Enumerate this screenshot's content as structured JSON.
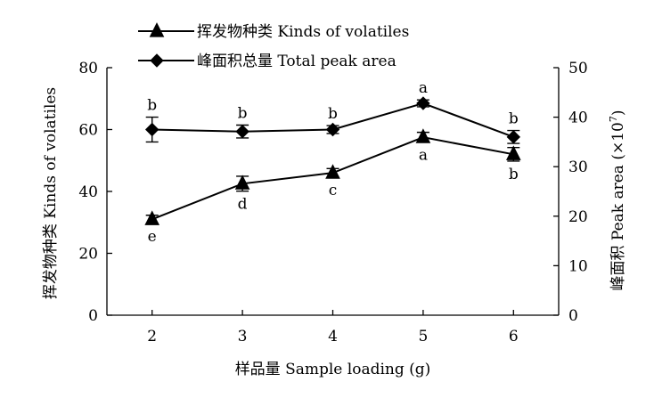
{
  "chart_data": {
    "type": "line",
    "xlabel": "样品量 Sample loading (g)",
    "ylabel_left": "挥发物种类 Kinds of volatiles",
    "ylabel_right": "峰面积 Peak area (×10^7)",
    "ylabel_right_main": "峰面积 Peak area (×10",
    "ylabel_right_exp": "7",
    "ylabel_right_close": ")",
    "x": [
      2,
      3,
      4,
      5,
      6
    ],
    "x_tick_labels": [
      "2",
      "3",
      "4",
      "5",
      "6"
    ],
    "xlim": [
      1.5,
      6.5
    ],
    "ylim_left": [
      0,
      80
    ],
    "yticks_left": [
      0,
      20,
      40,
      60,
      80
    ],
    "ytick_labels_left": [
      "0",
      "20",
      "40",
      "60",
      "80"
    ],
    "ylim_right": [
      0,
      50
    ],
    "yticks_right": [
      0,
      10,
      20,
      30,
      40,
      50
    ],
    "ytick_labels_right": [
      "0",
      "10",
      "20",
      "30",
      "40",
      "50"
    ],
    "grid": false,
    "legend_position": "top",
    "series": [
      {
        "name": "挥发物种类 Kinds of volatiles",
        "axis": "left",
        "marker": "triangle",
        "values": [
          31,
          42.5,
          46,
          57.5,
          52
        ],
        "errors": [
          1.3,
          2.4,
          1.4,
          1.6,
          2.2
        ],
        "labels": [
          "e",
          "d",
          "c",
          "a",
          "b"
        ],
        "label_position": "below"
      },
      {
        "name": "峰面积总量 Total peak area",
        "axis": "right",
        "marker": "diamond",
        "values": [
          37.5,
          37.1,
          37.5,
          42.8,
          36
        ],
        "errors": [
          2.5,
          1.3,
          0.8,
          0.7,
          1.3
        ],
        "labels": [
          "b",
          "b",
          "b",
          "a",
          "b"
        ],
        "label_position": "above"
      }
    ]
  }
}
